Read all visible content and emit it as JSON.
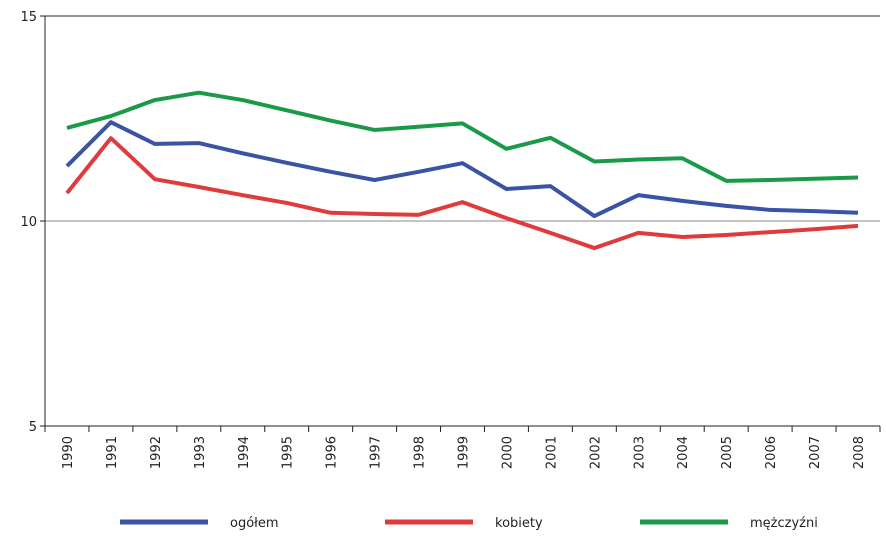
{
  "chart_data": {
    "type": "line",
    "categories": [
      "1990",
      "1991",
      "1992",
      "1993",
      "1994",
      "1995",
      "1996",
      "1997",
      "1998",
      "1999",
      "2000",
      "2001",
      "2002",
      "2003",
      "2004",
      "2005",
      "2006",
      "2007",
      "2008"
    ],
    "series": [
      {
        "name": "ogółem",
        "color": "#3a53a4",
        "values": [
          11.34,
          12.41,
          11.88,
          11.9,
          11.65,
          11.42,
          11.2,
          11.0,
          11.2,
          11.41,
          10.78,
          10.85,
          10.12,
          10.63,
          10.49,
          10.37,
          10.27,
          10.24,
          10.2
        ]
      },
      {
        "name": "kobiety",
        "color": "#e03a3c",
        "values": [
          10.68,
          12.02,
          11.02,
          10.83,
          10.63,
          10.44,
          10.2,
          10.17,
          10.15,
          10.46,
          10.07,
          9.71,
          9.34,
          9.71,
          9.61,
          9.66,
          9.73,
          9.8,
          9.88
        ]
      },
      {
        "name": "mężczyźni",
        "color": "#1a9a48",
        "values": [
          12.27,
          12.56,
          12.95,
          13.13,
          12.95,
          12.7,
          12.45,
          12.22,
          12.3,
          12.38,
          11.76,
          12.03,
          11.45,
          11.5,
          11.53,
          10.98,
          11.0,
          11.03,
          11.06
        ]
      }
    ],
    "ylim": [
      5,
      15
    ],
    "yticks": [
      5,
      10,
      15
    ],
    "grid": true
  }
}
